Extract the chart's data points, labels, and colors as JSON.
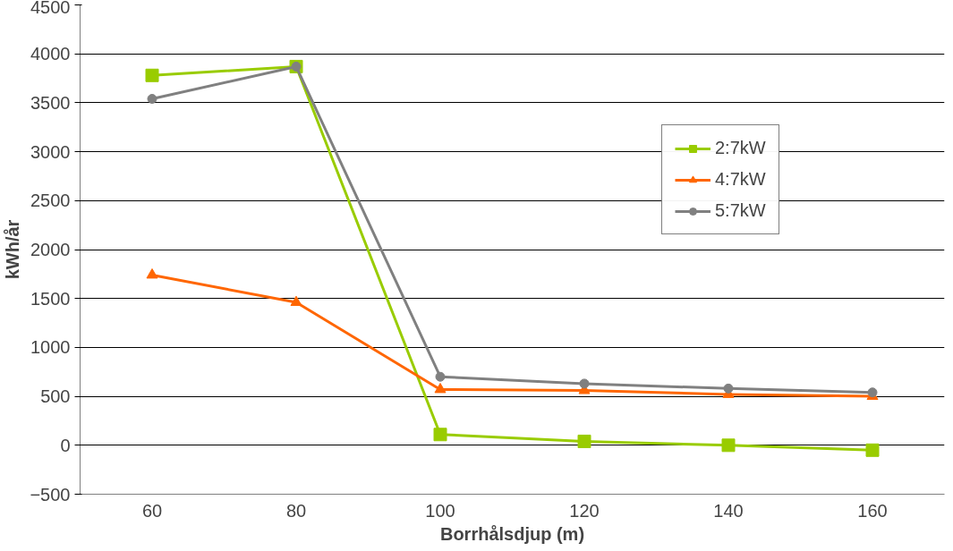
{
  "chart_data": {
    "type": "line",
    "xlabel": "Borrhålsdjup (m)",
    "ylabel": "kWh/år",
    "categories": [
      "60",
      "80",
      "100",
      "120",
      "140",
      "160"
    ],
    "ylim": [
      -500,
      4500
    ],
    "yticks": [
      -500,
      0,
      500,
      1000,
      1500,
      2000,
      2500,
      3000,
      3500,
      4000,
      4500
    ],
    "grid": "y",
    "legend": "right",
    "series": [
      {
        "name": "2:7kW",
        "color": "#99cc00",
        "marker": "square",
        "values": [
          3780,
          3870,
          110,
          40,
          0,
          -50
        ]
      },
      {
        "name": "4:7kW",
        "color": "#ff6600",
        "marker": "triangle",
        "values": [
          1740,
          1460,
          570,
          560,
          520,
          500
        ]
      },
      {
        "name": "5:7kW",
        "color": "#808080",
        "marker": "circle",
        "values": [
          3540,
          3870,
          700,
          630,
          580,
          540
        ]
      }
    ]
  }
}
